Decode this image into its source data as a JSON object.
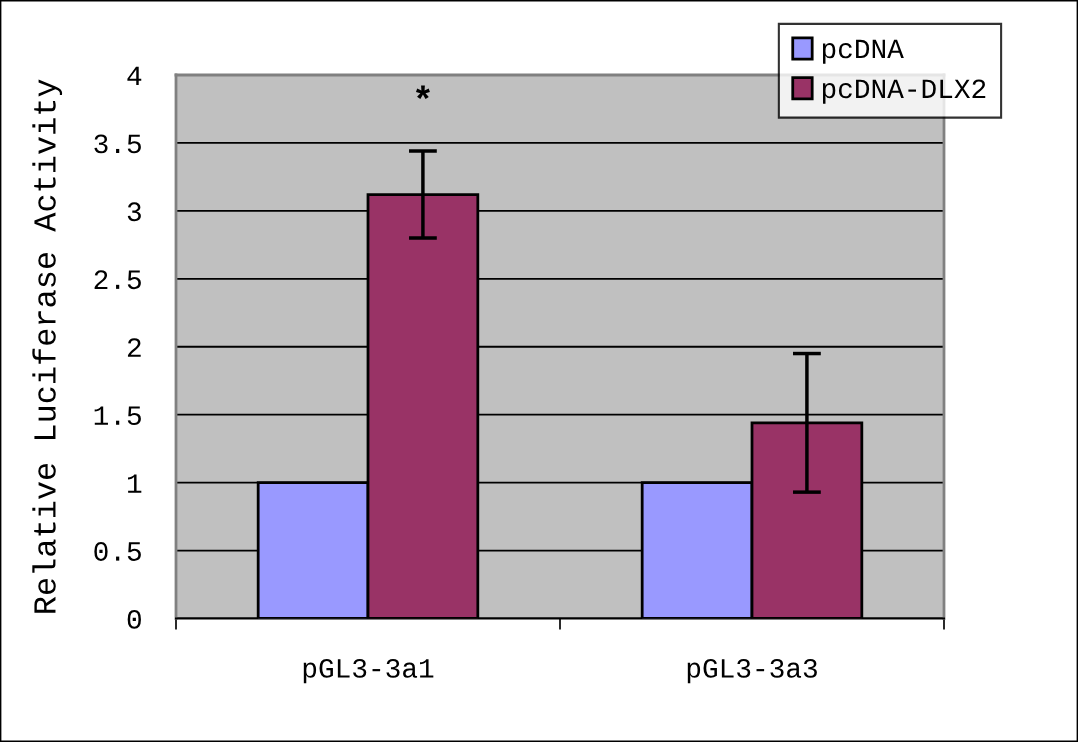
{
  "chart_data": {
    "type": "bar",
    "ylabel": "Relative Luciferase Activity",
    "categories": [
      "pGL3-3a1",
      "pGL3-3a3"
    ],
    "series": [
      {
        "name": "pcDNA",
        "color": "#9999ff",
        "values": [
          1.0,
          1.0
        ]
      },
      {
        "name": "pcDNA-DLX2",
        "color": "#993366",
        "values": [
          3.12,
          1.44
        ],
        "errors": [
          0.32,
          0.51
        ]
      }
    ],
    "ylim": [
      0,
      4
    ],
    "yticks": [
      0,
      0.5,
      1,
      1.5,
      2,
      2.5,
      3,
      3.5,
      4
    ],
    "grid": "y",
    "legend": "top right",
    "annotations": [
      "*"
    ]
  }
}
